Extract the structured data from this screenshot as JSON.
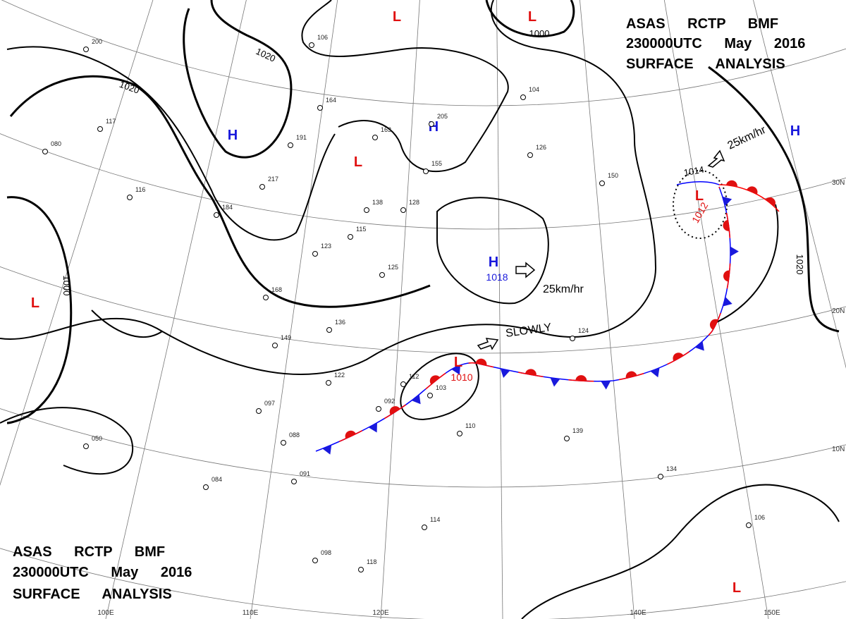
{
  "header": {
    "lines": [
      "ASAS RCTP BMF",
      "230000UTC May 2016",
      "SURFACE ANALYSIS"
    ]
  },
  "footer": {
    "lines": [
      "ASAS RCTP BMF",
      "230000UTC May 2016",
      "SURFACE ANALYSIS"
    ]
  },
  "isobar_labels": [
    "1000",
    "1020",
    "1020",
    "1000",
    "1020",
    "1014"
  ],
  "pressure_centers": [
    {
      "label": "H"
    },
    {
      "label": "H"
    },
    {
      "label": "H"
    },
    {
      "label": "H",
      "pressure": "1018"
    },
    {
      "label": "L"
    },
    {
      "label": "L"
    },
    {
      "label": "L"
    },
    {
      "label": "L"
    },
    {
      "label": "L",
      "pressure": "1012"
    },
    {
      "label": "L",
      "pressure": "1010"
    },
    {
      "label": "L"
    }
  ],
  "motion_labels": [
    "25km/hr",
    "25km/hr",
    "SLOWLY"
  ],
  "latitude_labels": [
    "30N",
    "20N",
    "10N"
  ],
  "longitude_labels": [
    "100E",
    "110E",
    "120E",
    "140E",
    "150E"
  ],
  "stations": [
    "164",
    "155",
    "163",
    "205",
    "138",
    "128",
    "115",
    "123",
    "125",
    "136",
    "149",
    "122",
    "097",
    "050",
    "084",
    "091",
    "098",
    "118",
    "114",
    "124",
    "134",
    "106",
    "110",
    "139",
    "150",
    "126",
    "104",
    "191",
    "217",
    "184",
    "168",
    "116",
    "080",
    "117",
    "200",
    "106",
    "092",
    "103",
    "112",
    "088"
  ]
}
